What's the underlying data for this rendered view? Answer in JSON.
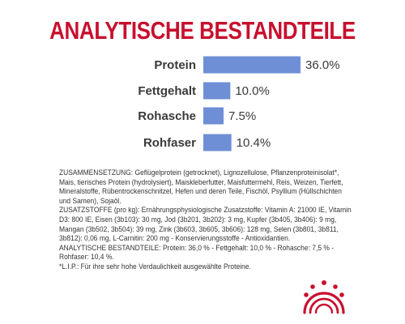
{
  "title": "ANALYTISCHE BESTANDTEILE",
  "colors": {
    "title": "#c8102e",
    "bar": "#6e8fd6",
    "text": "#3a3a3a",
    "logo": "#c8102e"
  },
  "chart_data": {
    "type": "bar",
    "orientation": "horizontal",
    "categories": [
      "Protein",
      "Fettgehalt",
      "Rohasche",
      "Rohfaser"
    ],
    "values": [
      36.0,
      10.0,
      7.5,
      10.4
    ],
    "value_labels": [
      "36.0%",
      "10.0%",
      "7.5%",
      "10.4%"
    ],
    "title": "ANALYTISCHE BESTANDTEILE",
    "xlabel": "",
    "ylabel": "",
    "xlim": [
      0,
      36.0
    ],
    "grid": false,
    "legend": "none"
  },
  "composition": {
    "zusammensetzung_label": "ZUSAMMENSETZUNG:",
    "zusammensetzung_text": " Geflügelprotein (getrocknet), Lignozellulose, Pflanzenproteinisolat*, Mais, tierisches Protein (hydrolysiert), Maiskleberfutter, Maisfuttermehl, Reis, Weizen, Tierfett, Mineralstoffe, Rübentrockenschnitzel, Hefen und deren Teile, Fischöl, Psyllium (Hüllschichten und Samen), Sojaöl.",
    "zusatzstoffe_label": "ZUSATZSTOFFE",
    "zusatzstoffe_text": " (pro kg): Ernährungsphysiologische Zusatzstoffe: Vitamin A: 21000 IE, Vitamin D3: 800 IE, Eisen (3b103): 30 mg, Jod (3b201, 3b202): 3 mg, Kupfer (3b405, 3b406): 9 mg, Mangan (3b502, 3b504): 39 mg, Zink (3b603, 3b605, 3b606): 128 mg, Selen (3b801, 3b811, 3b812): 0,06 mg, L-Carnitin: 200 mg - Konservierungsstoffe - Antioxidantien.",
    "analytische_label": "ANALYTISCHE BESTANDTEILE:",
    "analytische_text": " Protein: 36,0 % - Fettgehalt: 10,0 % - Rohasche: 7,5 % - Rohfaser: 10,4 %.",
    "footnote": "*L.I.P.: Für ihre sehr hohe Verdaulichkeit ausgewählte Proteine."
  },
  "logo": {
    "icon": "royal-canin-crown-icon"
  }
}
